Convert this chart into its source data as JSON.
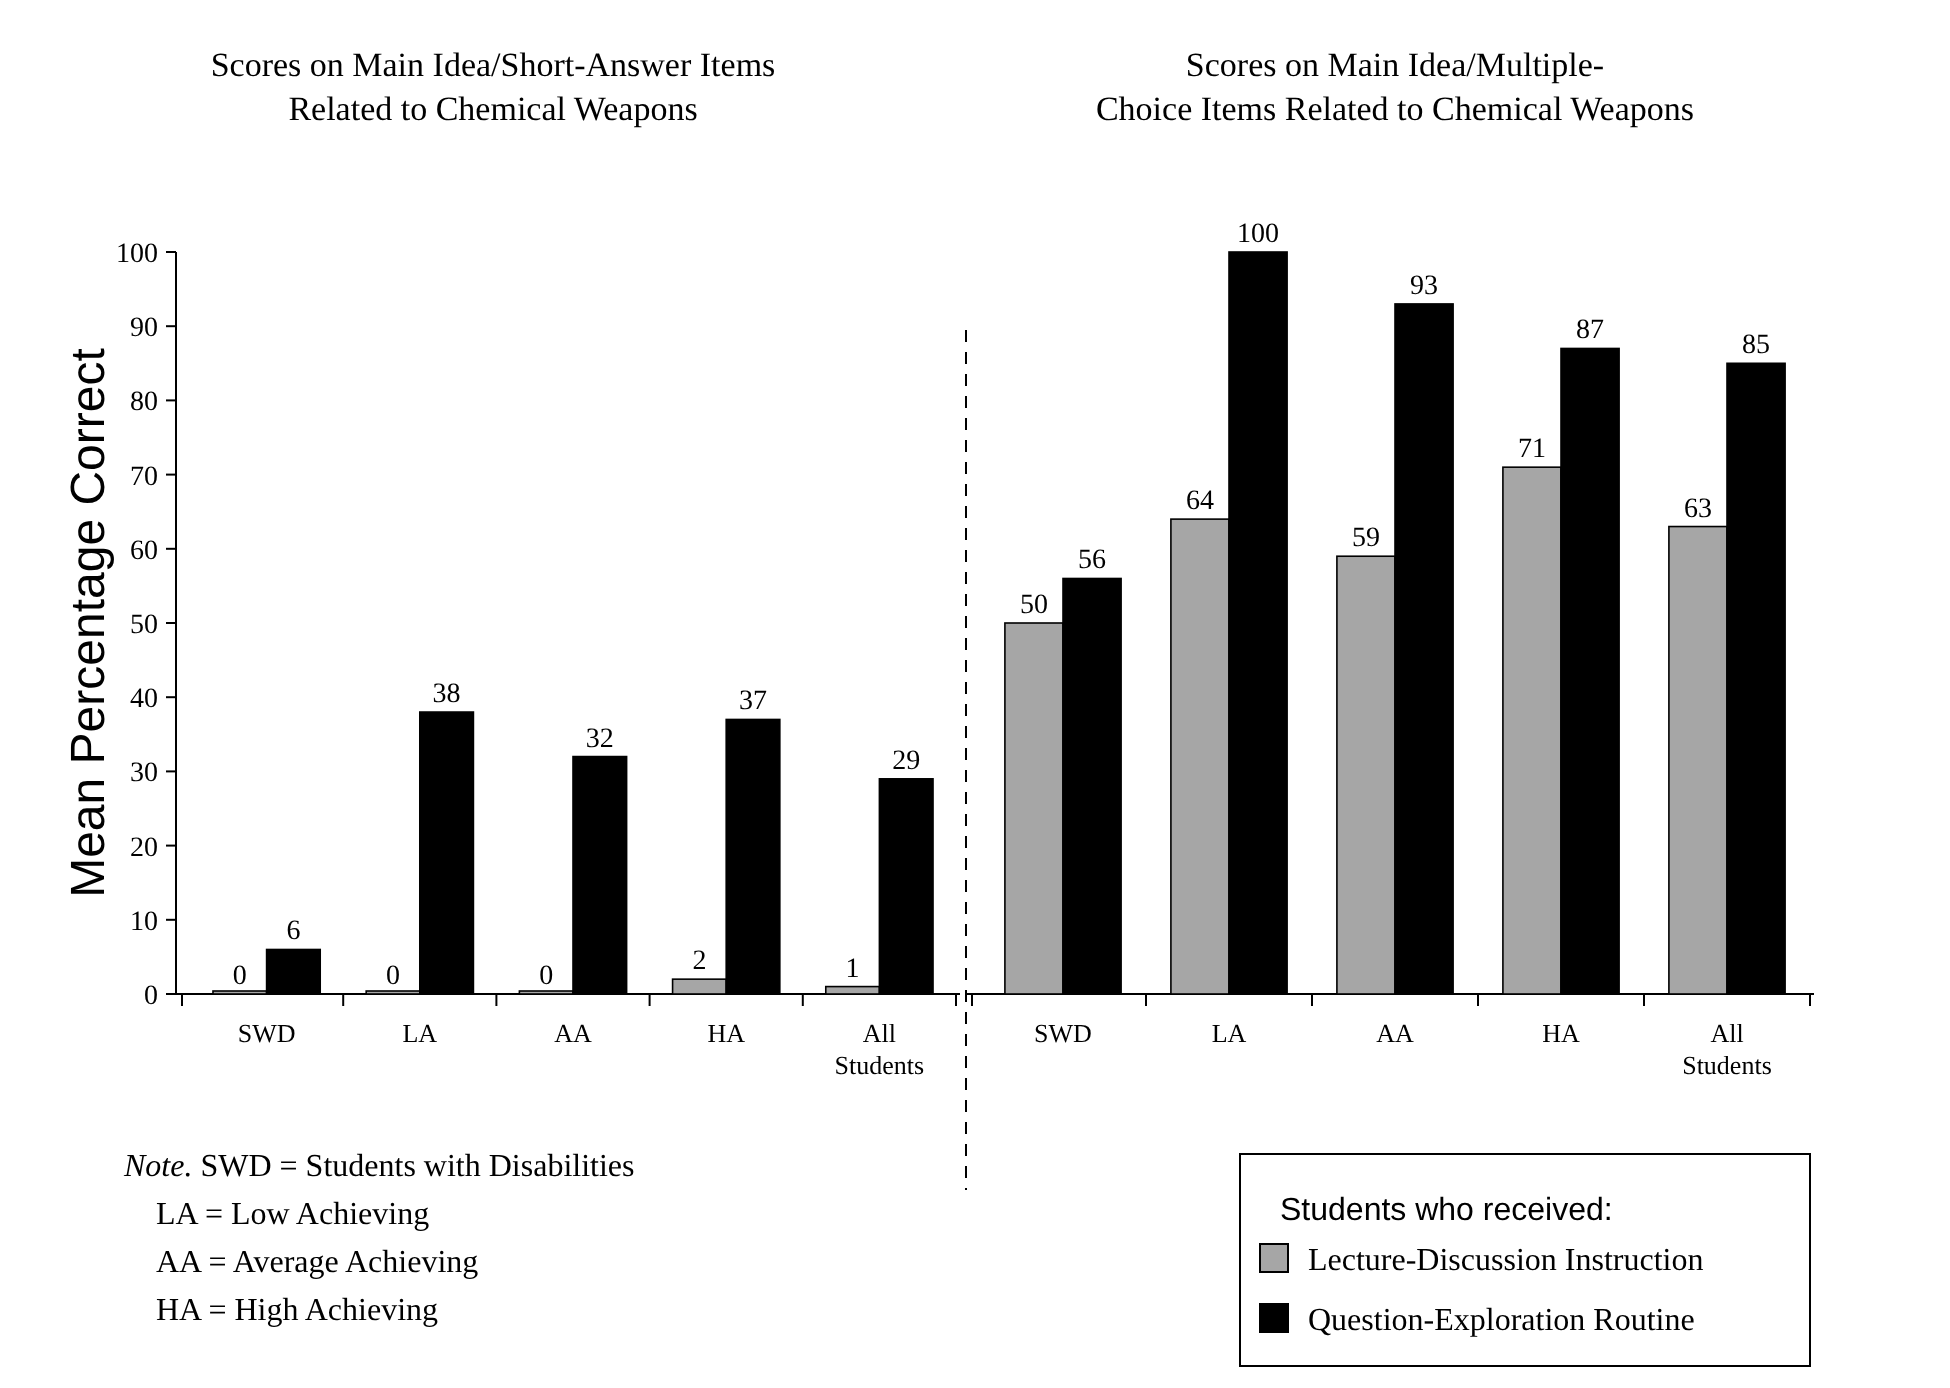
{
  "chart_data": [
    {
      "type": "bar",
      "title": "Scores on Main Idea/Short-Answer Items\nRelated to Chemical Weapons",
      "ylabel": "Mean Percentage Correct",
      "categories": [
        "SWD",
        "LA",
        "AA",
        "HA",
        "All Students"
      ],
      "ylim": [
        0,
        100
      ],
      "yticks": [
        0,
        10,
        20,
        30,
        40,
        50,
        60,
        70,
        80,
        90,
        100
      ],
      "data_labels": true,
      "series": [
        {
          "color": "#a6a6a6",
          "values": [
            0,
            0,
            0,
            2,
            1
          ]
        },
        {
          "color": "#000000",
          "values": [
            6,
            38,
            32,
            37,
            29
          ]
        }
      ],
      "annotations": [
        "Note. SWD = Students with Disabilities",
        "LA = Low Achieving",
        "AA = Average Achieving",
        "HA = High Achieving"
      ]
    },
    {
      "type": "bar",
      "title": "Scores on Main Idea/Multiple-\nChoice Items Related to Chemical Weapons",
      "categories": [
        "SWD",
        "LA",
        "AA",
        "HA",
        "All Students"
      ],
      "ylim": [
        0,
        100
      ],
      "tick_labels": "x",
      "data_labels": true,
      "legend": "bottom",
      "legend_title": "Students who received:",
      "series": [
        {
          "name": "Lecture-Discussion Instruction",
          "color": "#a6a6a6",
          "values": [
            50,
            64,
            59,
            71,
            63
          ]
        },
        {
          "name": "Question-Exploration Routine",
          "color": "#000000",
          "values": [
            56,
            100,
            93,
            87,
            85
          ]
        }
      ]
    }
  ]
}
